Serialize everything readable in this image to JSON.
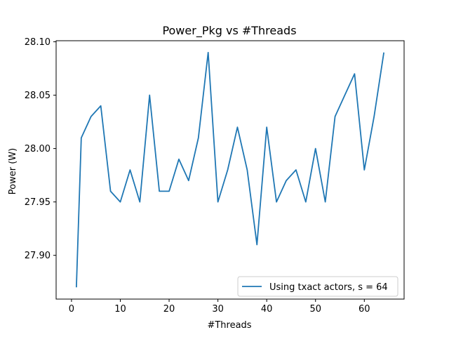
{
  "chart_data": {
    "type": "line",
    "title": "Power_Pkg vs #Threads",
    "xlabel": "#Threads",
    "ylabel": "Power (W)",
    "xlim": [
      -3.15,
      68.15
    ],
    "ylim": [
      27.859,
      28.101
    ],
    "xticks": [
      0,
      10,
      20,
      30,
      40,
      50,
      60
    ],
    "xtick_labels": [
      "0",
      "10",
      "20",
      "30",
      "40",
      "50",
      "60"
    ],
    "yticks": [
      27.9,
      27.95,
      28.0,
      28.05,
      28.1
    ],
    "ytick_labels": [
      "27.90",
      "27.95",
      "28.00",
      "28.05",
      "28.10"
    ],
    "grid": false,
    "legend_position": "lower-right",
    "series": [
      {
        "name": "Using txact actors, s = 64",
        "color": "#1f77b4",
        "x": [
          1,
          2,
          4,
          6,
          8,
          10,
          12,
          14,
          16,
          18,
          20,
          22,
          24,
          26,
          28,
          30,
          32,
          34,
          36,
          38,
          40,
          42,
          44,
          46,
          48,
          50,
          52,
          54,
          56,
          58,
          60,
          62,
          64
        ],
        "y": [
          27.87,
          28.01,
          28.03,
          28.04,
          27.96,
          27.95,
          27.98,
          27.95,
          28.05,
          27.96,
          27.96,
          27.99,
          27.97,
          28.01,
          28.09,
          27.95,
          27.98,
          28.02,
          27.98,
          27.91,
          28.02,
          27.95,
          27.97,
          27.98,
          27.95,
          28.0,
          27.95,
          28.03,
          28.05,
          28.07,
          27.98,
          28.03,
          28.09
        ]
      }
    ]
  }
}
